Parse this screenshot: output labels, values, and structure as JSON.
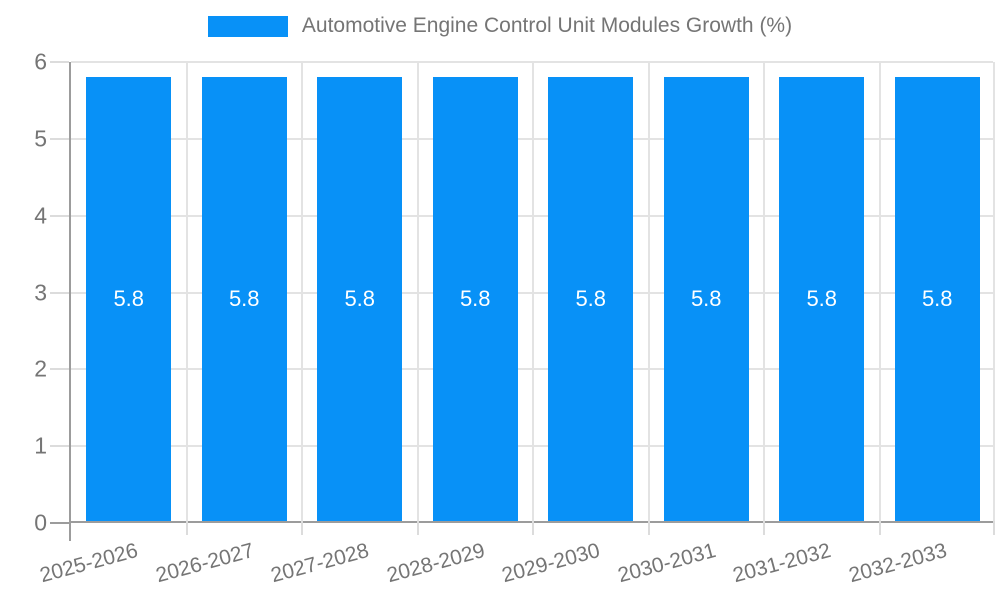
{
  "legend": {
    "label": "Automotive Engine Control Unit Modules Growth (%)"
  },
  "chart_data": {
    "type": "bar",
    "title": "Automotive Engine Control Unit Modules Growth (%)",
    "categories": [
      "2025-2026",
      "2026-2027",
      "2027-2028",
      "2028-2029",
      "2029-2030",
      "2030-2031",
      "2031-2032",
      "2032-2033"
    ],
    "values": [
      5.8,
      5.8,
      5.8,
      5.8,
      5.8,
      5.8,
      5.8,
      5.8
    ],
    "value_labels": [
      "5.8",
      "5.8",
      "5.8",
      "5.8",
      "5.8",
      "5.8",
      "5.8",
      "5.8"
    ],
    "xlabel": "",
    "ylabel": "",
    "ylim": [
      0,
      6
    ],
    "yticks": [
      0,
      1,
      2,
      3,
      4,
      5,
      6
    ],
    "grid": true,
    "legend_position": "top"
  },
  "colors": {
    "bar": "#0891f7",
    "bar_label": "#ffffff",
    "grid": "#e3e3e3",
    "axis": "#9c9c9c",
    "text": "#757575",
    "background": "#ffffff"
  }
}
